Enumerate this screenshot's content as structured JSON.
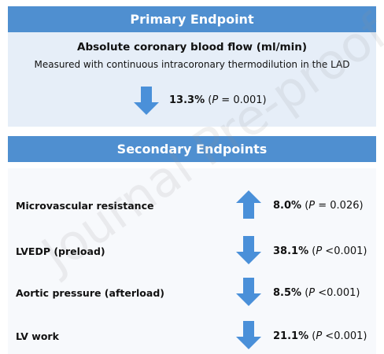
{
  "primary": {
    "header": "Primary Endpoint",
    "title": "Absolute coronary blood flow (ml/min)",
    "subtitle": "Measured with continuous intracoronary thermodilution in the LAD",
    "direction": "down",
    "change": "13.3%",
    "stat": "(P = 0.001)"
  },
  "secondary": {
    "header": "Secondary Endpoints",
    "rows": [
      {
        "label": "Microvascular resistance",
        "direction": "up",
        "change": "8.0%",
        "stat": "(P = 0.026)"
      },
      {
        "label": "LVEDP (preload)",
        "direction": "down",
        "change": "38.1%",
        "stat": "(P <0.001)"
      },
      {
        "label": "Aortic pressure (afterload)",
        "direction": "down",
        "change": "8.5%",
        "stat": "(P <0.001)"
      },
      {
        "label": "LV work",
        "direction": "down",
        "change": "21.1%",
        "stat": "(P <0.001)"
      }
    ]
  },
  "watermark": "Journal Pre-proof"
}
